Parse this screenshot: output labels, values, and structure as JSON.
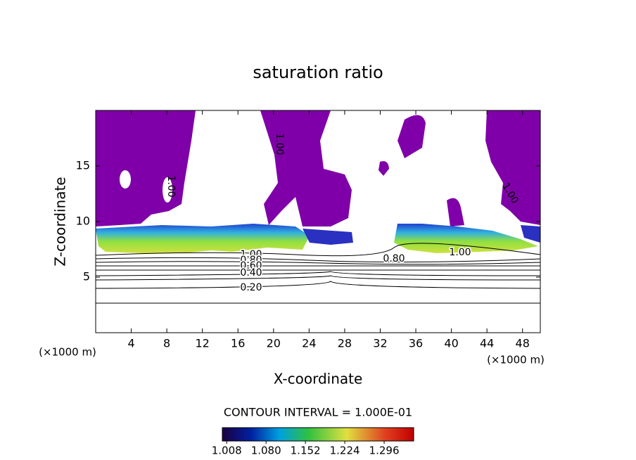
{
  "chart_data": {
    "type": "contour",
    "title": "saturation ratio",
    "x_label": "X-coordinate",
    "y_label": "Z-coordinate",
    "x_unit": "(×1000 m)",
    "xlim": [
      0,
      50
    ],
    "xticks": [
      4,
      8,
      12,
      16,
      20,
      24,
      28,
      32,
      36,
      40,
      44,
      48
    ],
    "ylim": [
      0,
      20
    ],
    "yticks": [
      5,
      10,
      15
    ],
    "contour_interval_text": "CONTOUR INTERVAL = 1.000E-01",
    "contour_labels": [
      {
        "value": 1.0,
        "label": "1.00"
      },
      {
        "value": 0.8,
        "label": "0.80"
      },
      {
        "value": 0.6,
        "label": "0.60"
      },
      {
        "value": 0.4,
        "label": "0.40"
      },
      {
        "value": 0.2,
        "label": "0.20"
      },
      {
        "value": 0.8,
        "label": "0.80"
      },
      {
        "value": 1.0,
        "label": "1.00"
      },
      {
        "value": 1.0,
        "label": "1.00"
      },
      {
        "value": 1.0,
        "label": "1.00"
      },
      {
        "value": 1.0,
        "label": "1.00"
      }
    ],
    "colorbar_lim": [
      1.0,
      1.35
    ],
    "colorbar_ticks": [
      1.008,
      {
        "value": 1.08,
        "label": "1.080"
      },
      1.152,
      1.224,
      1.296
    ]
  }
}
